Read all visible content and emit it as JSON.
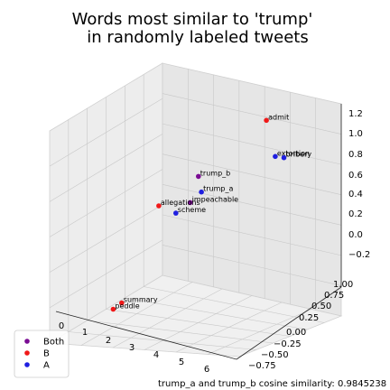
{
  "chart_data": {
    "type": "scatter",
    "title_lines": [
      "Words most similar to 'trump'",
      "in randomly labeled tweets"
    ],
    "xlabel": "",
    "ylabel": "",
    "zlabel": "",
    "x_ticks": [
      "0",
      "1",
      "2",
      "3",
      "4",
      "5",
      "6"
    ],
    "y_ticks": [
      "−0.75",
      "−0.50",
      "−0.25",
      "0.00",
      "0.25",
      "0.50",
      "0.75",
      "1.00"
    ],
    "z_ticks": [
      "−0.2",
      "0.0",
      "0.2",
      "0.4",
      "0.6",
      "0.8",
      "1.0",
      "1.2"
    ],
    "xlim": [
      0,
      6.5
    ],
    "ylim": [
      -0.85,
      1.05
    ],
    "zlim": [
      -0.3,
      1.3
    ],
    "grid": true,
    "legend_position": "bottom-left",
    "series": [
      {
        "name": "Both",
        "color": "#7a0c93",
        "points": [
          {
            "label": "trump_b",
            "x": 3.0,
            "y": 0.2,
            "z": 0.7
          },
          {
            "label": "impeachable",
            "x": 3.1,
            "y": 0.0,
            "z": 0.55
          }
        ]
      },
      {
        "name": "B",
        "color": "#f01818",
        "points": [
          {
            "label": "admit",
            "x": 4.6,
            "y": 0.6,
            "z": 1.15
          },
          {
            "label": "allegations",
            "x": 2.0,
            "y": 0.0,
            "z": 0.45
          },
          {
            "label": "summary",
            "x": 0.5,
            "y": 0.1,
            "z": -0.5
          },
          {
            "label": "peddle",
            "x": 0.3,
            "y": 0.05,
            "z": -0.55
          }
        ]
      },
      {
        "name": "A",
        "color": "#1f1fe0",
        "points": [
          {
            "label": "extortion",
            "x": 5.5,
            "y": 0.3,
            "z": 1.0
          },
          {
            "label": "bribery",
            "x": 6.2,
            "y": 0.1,
            "z": 1.1
          },
          {
            "label": "trump_a",
            "x": 3.3,
            "y": 0.1,
            "z": 0.62
          },
          {
            "label": "scheme",
            "x": 2.7,
            "y": -0.05,
            "z": 0.45
          }
        ]
      }
    ],
    "footnote": "trump_a and trump_b cosine similarity: 0.9845238"
  }
}
